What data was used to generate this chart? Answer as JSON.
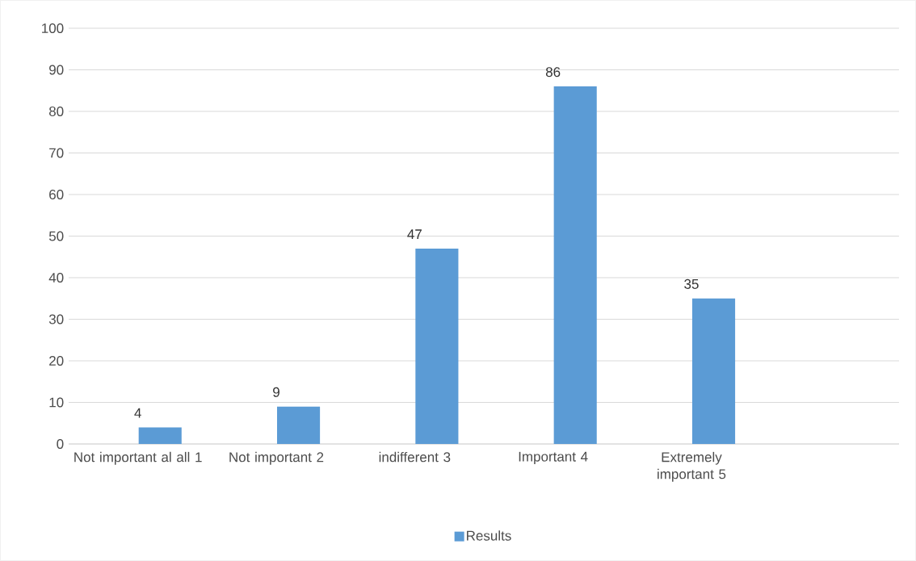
{
  "chart_data": {
    "type": "bar",
    "categories": [
      "Not important al all 1",
      "Not important 2",
      "indifferent 3",
      "Important 4",
      "Extremely important 5",
      null
    ],
    "series": [
      {
        "name": "Results",
        "color": "#5b9bd5",
        "values": [
          4,
          9,
          47,
          86,
          35,
          null
        ]
      }
    ],
    "ylim": [
      0,
      100
    ],
    "yticks": [
      0,
      10,
      20,
      30,
      40,
      50,
      60,
      70,
      80,
      90,
      100
    ],
    "grid": "y",
    "legend": "bottom",
    "data_labels": true
  }
}
